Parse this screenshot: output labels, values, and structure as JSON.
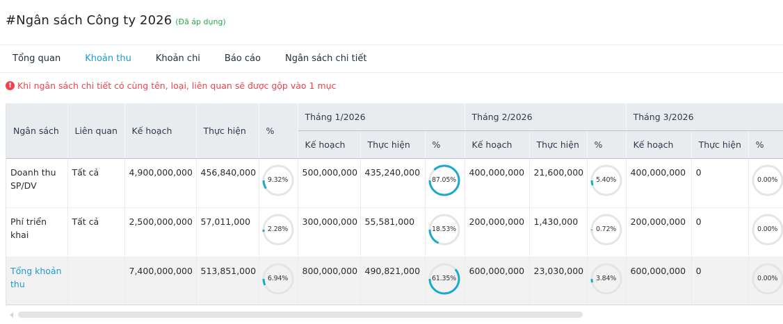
{
  "header": {
    "title": "#Ngân sách Công ty 2026",
    "status": "(Đã áp dụng)",
    "status_color": "#28a745"
  },
  "tabs": [
    {
      "label": "Tổng quan",
      "active": false
    },
    {
      "label": "Khoản thu",
      "active": true
    },
    {
      "label": "Khoản chi",
      "active": false
    },
    {
      "label": "Báo cáo",
      "active": false
    },
    {
      "label": "Ngân sách chi tiết",
      "active": false
    }
  ],
  "alert": {
    "icon": "exclamation-circle-icon",
    "text": "Khi ngân sách chi tiết có cùng tên, loại, liên quan sẽ được gộp vào 1 mục",
    "color": "#f0424c"
  },
  "table": {
    "columns": {
      "budget": "Ngân sách",
      "related": "Liên quan",
      "plan": "Kế hoạch",
      "actual": "Thực hiện",
      "percent": "%"
    },
    "months": [
      {
        "label": "Tháng 1/2026",
        "plan": "Kế hoạch",
        "actual": "Thực hiện",
        "percent": "%"
      },
      {
        "label": "Tháng 2/2026",
        "plan": "Kế hoạch",
        "actual": "Thực hiện",
        "percent": "%"
      },
      {
        "label": "Tháng 3/2026",
        "plan": "Kế hoạch",
        "actual": "Thực hiện",
        "percent": "%"
      }
    ],
    "rows": [
      {
        "name": "Doanh thu SP/DV",
        "related": "Tất cả",
        "plan": "4,900,000,000",
        "actual": "456,840,000",
        "percent": "9.32%",
        "percent_value": 9.32,
        "months": [
          {
            "plan": "500,000,000",
            "actual": "435,240,000",
            "percent": "87.05%",
            "percent_value": 87.05
          },
          {
            "plan": "400,000,000",
            "actual": "21,600,000",
            "percent": "5.40%",
            "percent_value": 5.4
          },
          {
            "plan": "400,000,000",
            "actual": "0",
            "percent": "0.00%",
            "percent_value": 0
          }
        ]
      },
      {
        "name": "Phí triển khai",
        "related": "Tất cả",
        "plan": "2,500,000,000",
        "actual": "57,011,000",
        "percent": "2.28%",
        "percent_value": 2.28,
        "months": [
          {
            "plan": "300,000,000",
            "actual": "55,581,000",
            "percent": "18.53%",
            "percent_value": 18.53
          },
          {
            "plan": "200,000,000",
            "actual": "1,430,000",
            "percent": "0.72%",
            "percent_value": 0.72
          },
          {
            "plan": "200,000,000",
            "actual": "0",
            "percent": "0.00%",
            "percent_value": 0
          }
        ]
      },
      {
        "name": "Tổng khoản thu",
        "related": "",
        "plan": "7,400,000,000",
        "actual": "513,851,000",
        "percent": "6.94%",
        "percent_value": 6.94,
        "months": [
          {
            "plan": "800,000,000",
            "actual": "490,821,000",
            "percent": "61.35%",
            "percent_value": 61.35
          },
          {
            "plan": "600,000,000",
            "actual": "23,030,000",
            "percent": "3.84%",
            "percent_value": 3.84
          },
          {
            "plan": "600,000,000",
            "actual": "0",
            "percent": "0.00%",
            "percent_value": 0
          }
        ]
      }
    ]
  },
  "colors": {
    "accent": "#1a9bd7",
    "ring_progress": "#1ba8d1",
    "ring_track": "#e5e5e5",
    "header_bg": "#e9ecef",
    "total_row_bg": "#f2f2f2"
  }
}
